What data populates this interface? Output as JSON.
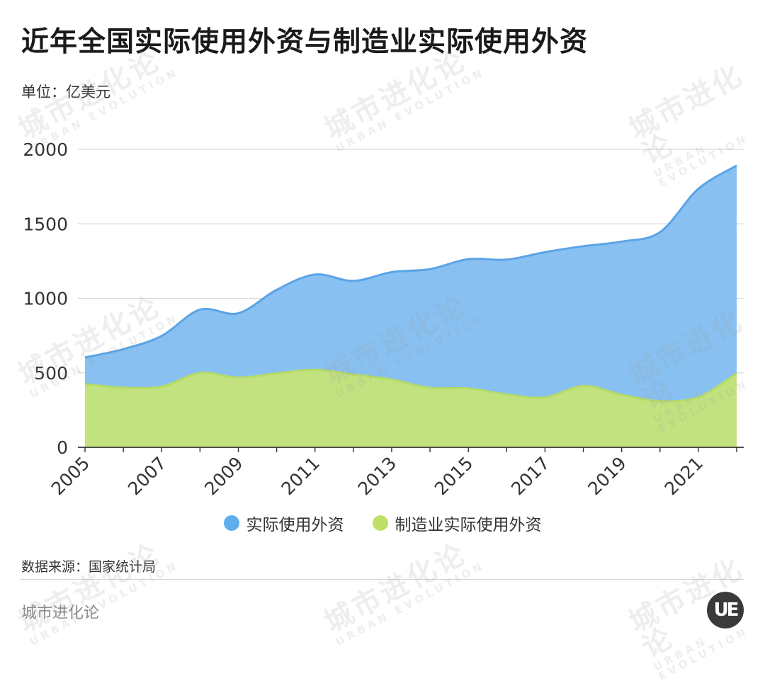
{
  "title": "近年全国实际使用外资与制造业实际使用外资",
  "unit": "单位：亿美元",
  "source": "数据来源：国家统计局",
  "brand": "城市进化论",
  "logo_text": "UE",
  "watermark": {
    "cn": "城市进化论",
    "en": "URBAN EVOLUTION"
  },
  "colors": {
    "total_fill": "#87C0F1",
    "total_line": "#5BA4E6",
    "mfg_fill": "#C2E27F",
    "mfg_line": "#B5DB66",
    "legend_total": "#5EAEEE",
    "legend_mfg": "#BFE066",
    "grid": "#d9d9d9",
    "axis": "#333333"
  },
  "legend": [
    {
      "label": "实际使用外资",
      "color": "#5EAEEE"
    },
    {
      "label": "制造业实际使用外资",
      "color": "#BFE066"
    }
  ],
  "chart_data": {
    "type": "area",
    "x": [
      2005,
      2006,
      2007,
      2008,
      2009,
      2010,
      2011,
      2012,
      2013,
      2014,
      2015,
      2016,
      2017,
      2018,
      2019,
      2020,
      2021,
      2022
    ],
    "x_tick_labels": [
      "2005",
      "2007",
      "2009",
      "2011",
      "2013",
      "2015",
      "2017",
      "2019",
      "2021"
    ],
    "y_ticks": [
      0,
      500,
      1000,
      1500,
      2000
    ],
    "ylim": [
      0,
      2000
    ],
    "series": [
      {
        "name": "实际使用外资",
        "values": [
          603,
          659,
          748,
          924,
          900,
          1057,
          1160,
          1117,
          1176,
          1196,
          1263,
          1260,
          1310,
          1350,
          1381,
          1444,
          1735,
          1891
        ]
      },
      {
        "name": "制造业实际使用外资",
        "values": [
          424,
          401,
          408,
          499,
          468,
          496,
          521,
          489,
          455,
          399,
          395,
          355,
          335,
          412,
          353,
          310,
          337,
          496
        ]
      }
    ]
  }
}
